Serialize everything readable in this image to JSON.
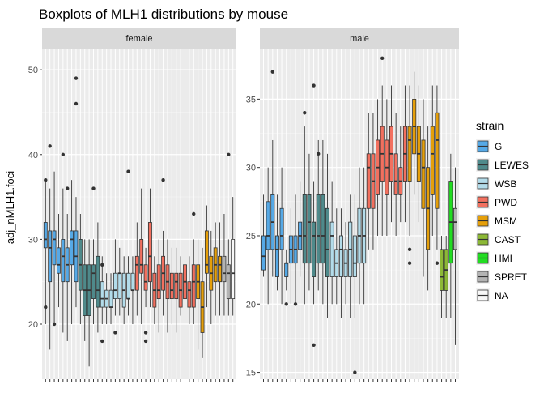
{
  "chart_data": {
    "type": "boxplot",
    "title": "Boxplots of MLH1 distributions by mouse",
    "ylabel": "adj_nMLH1.foci",
    "xlabel": "",
    "grid": true,
    "legend": {
      "title": "strain",
      "placement": "right",
      "entries": [
        {
          "name": "G",
          "color": "#56a9e6"
        },
        {
          "name": "LEWES",
          "color": "#4f8a8b"
        },
        {
          "name": "WSB",
          "color": "#b3dcea"
        },
        {
          "name": "PWD",
          "color": "#f2705f"
        },
        {
          "name": "MSM",
          "color": "#e59f0a"
        },
        {
          "name": "CAST",
          "color": "#8cb836"
        },
        {
          "name": "HMI",
          "color": "#22dd22"
        },
        {
          "name": "SPRET",
          "color": "#b3b3b3"
        },
        {
          "name": "NA",
          "color": "#f8f8f8"
        }
      ]
    },
    "facets": [
      {
        "label": "female",
        "ylim": [
          13.5,
          52.5
        ],
        "yticks": [
          20,
          30,
          40,
          50
        ],
        "boxes": [
          {
            "strain": "G",
            "min": 20,
            "q1": 29,
            "median": 30,
            "q3": 32,
            "max": 37,
            "outliers": [
              22,
              37
            ]
          },
          {
            "strain": "G",
            "min": 17,
            "q1": 25,
            "median": 29,
            "q3": 31,
            "max": 36,
            "outliers": [
              41
            ]
          },
          {
            "strain": "G",
            "min": 20,
            "q1": 27,
            "median": 30,
            "q3": 31,
            "max": 38,
            "outliers": [
              20
            ]
          },
          {
            "strain": "G",
            "min": 22,
            "q1": 26,
            "median": 27,
            "q3": 29,
            "max": 33,
            "outliers": []
          },
          {
            "strain": "G",
            "min": 19,
            "q1": 25,
            "median": 28,
            "q3": 30,
            "max": 36,
            "outliers": [
              40
            ]
          },
          {
            "strain": "G",
            "min": 18,
            "q1": 25,
            "median": 27,
            "q3": 29,
            "max": 33,
            "outliers": [
              36
            ]
          },
          {
            "strain": "G",
            "min": 20,
            "q1": 27,
            "median": 30,
            "q3": 31,
            "max": 37,
            "outliers": []
          },
          {
            "strain": "G",
            "min": 22,
            "q1": 25,
            "median": 28,
            "q3": 31,
            "max": 35,
            "outliers": [
              49,
              46
            ]
          },
          {
            "strain": "LEWES",
            "min": 20,
            "q1": 24,
            "median": 27,
            "q3": 30,
            "max": 33,
            "outliers": []
          },
          {
            "strain": "LEWES",
            "min": 18,
            "q1": 21,
            "median": 24,
            "q3": 27,
            "max": 30,
            "outliers": []
          },
          {
            "strain": "LEWES",
            "min": 15,
            "q1": 21,
            "median": 24,
            "q3": 27,
            "max": 30,
            "outliers": []
          },
          {
            "strain": "LEWES",
            "min": 20,
            "q1": 23,
            "median": 26,
            "q3": 27,
            "max": 30,
            "outliers": [
              36
            ]
          },
          {
            "strain": "LEWES",
            "min": 19,
            "q1": 22,
            "median": 24,
            "q3": 28,
            "max": 32,
            "outliers": []
          },
          {
            "strain": "WSB",
            "min": 20,
            "q1": 22,
            "median": 23,
            "q3": 25,
            "max": 28,
            "outliers": [
              18,
              27
            ]
          },
          {
            "strain": "WSB",
            "min": 20,
            "q1": 22,
            "median": 23,
            "q3": 24,
            "max": 26,
            "outliers": []
          },
          {
            "strain": "WSB",
            "min": 20,
            "q1": 22,
            "median": 22,
            "q3": 24,
            "max": 26,
            "outliers": []
          },
          {
            "strain": "WSB",
            "min": 21,
            "q1": 23,
            "median": 24,
            "q3": 26,
            "max": 30,
            "outliers": [
              19
            ]
          },
          {
            "strain": "WSB",
            "min": 21,
            "q1": 23,
            "median": 26,
            "q3": 26,
            "max": 29,
            "outliers": []
          },
          {
            "strain": "WSB",
            "min": 20,
            "q1": 22,
            "median": 24,
            "q3": 26,
            "max": 28,
            "outliers": []
          },
          {
            "strain": "WSB",
            "min": 21,
            "q1": 23,
            "median": 23,
            "q3": 26,
            "max": 28,
            "outliers": [
              38
            ]
          },
          {
            "strain": "WSB",
            "min": 20,
            "q1": 24,
            "median": 24,
            "q3": 26,
            "max": 28,
            "outliers": []
          },
          {
            "strain": "PWD",
            "min": 21,
            "q1": 24,
            "median": 27,
            "q3": 28,
            "max": 32,
            "outliers": []
          },
          {
            "strain": "PWD",
            "min": 20,
            "q1": 26,
            "median": 27,
            "q3": 30,
            "max": 36,
            "outliers": []
          },
          {
            "strain": "PWD",
            "min": 22,
            "q1": 24,
            "median": 25,
            "q3": 27,
            "max": 29,
            "outliers": [
              18,
              19
            ]
          },
          {
            "strain": "PWD",
            "min": 22,
            "q1": 25,
            "median": 28,
            "q3": 32,
            "max": 36,
            "outliers": []
          },
          {
            "strain": "PWD",
            "min": 20,
            "q1": 22,
            "median": 24,
            "q3": 26,
            "max": 28,
            "outliers": []
          },
          {
            "strain": "PWD",
            "min": 19,
            "q1": 23,
            "median": 24,
            "q3": 27,
            "max": 30,
            "outliers": []
          },
          {
            "strain": "PWD",
            "min": 21,
            "q1": 24,
            "median": 26,
            "q3": 28,
            "max": 31,
            "outliers": [
              37
            ]
          },
          {
            "strain": "PWD",
            "min": 19,
            "q1": 23,
            "median": 25,
            "q3": 27,
            "max": 30,
            "outliers": []
          },
          {
            "strain": "PWD",
            "min": 20,
            "q1": 23,
            "median": 24,
            "q3": 26,
            "max": 29,
            "outliers": []
          },
          {
            "strain": "PWD",
            "min": 19,
            "q1": 23,
            "median": 25,
            "q3": 26,
            "max": 29,
            "outliers": []
          },
          {
            "strain": "PWD",
            "min": 21,
            "q1": 22,
            "median": 24,
            "q3": 26,
            "max": 28,
            "outliers": []
          },
          {
            "strain": "PWD",
            "min": 20,
            "q1": 23,
            "median": 25,
            "q3": 27,
            "max": 30,
            "outliers": []
          },
          {
            "strain": "PWD",
            "min": 20,
            "q1": 22,
            "median": 24,
            "q3": 25,
            "max": 28,
            "outliers": []
          },
          {
            "strain": "PWD",
            "min": 20,
            "q1": 22,
            "median": 25,
            "q3": 27,
            "max": 30,
            "outliers": [
              33
            ]
          },
          {
            "strain": "MSM",
            "min": 17,
            "q1": 23,
            "median": 25,
            "q3": 27,
            "max": 30,
            "outliers": []
          },
          {
            "strain": "MSM",
            "min": 16,
            "q1": 19,
            "median": 22,
            "q3": 25,
            "max": 29,
            "outliers": []
          },
          {
            "strain": "MSM",
            "min": 22,
            "q1": 26,
            "median": 27,
            "q3": 31,
            "max": 34,
            "outliers": []
          },
          {
            "strain": "MSM",
            "min": 20,
            "q1": 24,
            "median": 26,
            "q3": 28,
            "max": 31,
            "outliers": []
          },
          {
            "strain": "MSM",
            "min": 21,
            "q1": 25,
            "median": 27,
            "q3": 29,
            "max": 32,
            "outliers": []
          },
          {
            "strain": "MSM",
            "min": 21,
            "q1": 25,
            "median": 27,
            "q3": 28,
            "max": 32,
            "outliers": []
          },
          {
            "strain": "SPRET",
            "min": 21,
            "q1": 25,
            "median": 26,
            "q3": 28,
            "max": 33,
            "outliers": []
          },
          {
            "strain": "SPRET",
            "min": 21,
            "q1": 23,
            "median": 26,
            "q3": 27,
            "max": 30,
            "outliers": [
              40
            ]
          },
          {
            "strain": "NA",
            "min": 21,
            "q1": 23,
            "median": 26,
            "q3": 30,
            "max": 35,
            "outliers": []
          }
        ]
      },
      {
        "label": "male",
        "ylim": [
          14.5,
          38.7
        ],
        "yticks": [
          15,
          20,
          25,
          30,
          35
        ],
        "boxes": [
          {
            "strain": "G",
            "min": 22,
            "q1": 22.5,
            "median": 23.5,
            "q3": 25,
            "max": 28,
            "outliers": []
          },
          {
            "strain": "G",
            "min": 20,
            "q1": 24,
            "median": 25,
            "q3": 27.5,
            "max": 30,
            "outliers": []
          },
          {
            "strain": "G",
            "min": 22,
            "q1": 24,
            "median": 26,
            "q3": 28,
            "max": 32,
            "outliers": [
              37
            ]
          },
          {
            "strain": "G",
            "min": 21,
            "q1": 22,
            "median": 24,
            "q3": 25,
            "max": 28,
            "outliers": []
          },
          {
            "strain": "G",
            "min": 20,
            "q1": 24,
            "median": 25,
            "q3": 27,
            "max": 30,
            "outliers": []
          },
          {
            "strain": "G",
            "min": 21,
            "q1": 22,
            "median": 23,
            "q3": 23,
            "max": 24,
            "outliers": [
              20
            ]
          },
          {
            "strain": "G",
            "min": 20,
            "q1": 23,
            "median": 24,
            "q3": 25,
            "max": 27,
            "outliers": []
          },
          {
            "strain": "G",
            "min": 20,
            "q1": 23,
            "median": 24,
            "q3": 25,
            "max": 28,
            "outliers": [
              20
            ]
          },
          {
            "strain": "G",
            "min": 22,
            "q1": 24,
            "median": 25,
            "q3": 26,
            "max": 29,
            "outliers": []
          },
          {
            "strain": "LEWES",
            "min": 20,
            "q1": 23,
            "median": 25,
            "q3": 28,
            "max": 33,
            "outliers": [
              34
            ]
          },
          {
            "strain": "LEWES",
            "min": 21,
            "q1": 23,
            "median": 26,
            "q3": 28,
            "max": 31,
            "outliers": []
          },
          {
            "strain": "LEWES",
            "min": 20,
            "q1": 22,
            "median": 25,
            "q3": 26,
            "max": 29,
            "outliers": [
              17,
              36
            ]
          },
          {
            "strain": "LEWES",
            "min": 21,
            "q1": 23,
            "median": 25,
            "q3": 28,
            "max": 32,
            "outliers": [
              31
            ]
          },
          {
            "strain": "LEWES",
            "min": 20,
            "q1": 23,
            "median": 25,
            "q3": 28,
            "max": 32,
            "outliers": []
          },
          {
            "strain": "LEWES",
            "min": 19,
            "q1": 22,
            "median": 24,
            "q3": 27,
            "max": 31,
            "outliers": []
          },
          {
            "strain": "WSB",
            "min": 20,
            "q1": 22,
            "median": 25,
            "q3": 26,
            "max": 29,
            "outliers": []
          },
          {
            "strain": "WSB",
            "min": 20,
            "q1": 22,
            "median": 23,
            "q3": 24,
            "max": 27,
            "outliers": []
          },
          {
            "strain": "WSB",
            "min": 19,
            "q1": 22,
            "median": 24,
            "q3": 25,
            "max": 27,
            "outliers": []
          },
          {
            "strain": "WSB",
            "min": 20,
            "q1": 22,
            "median": 23,
            "q3": 24,
            "max": 26,
            "outliers": []
          },
          {
            "strain": "WSB",
            "min": 19,
            "q1": 22,
            "median": 24,
            "q3": 26,
            "max": 28,
            "outliers": []
          },
          {
            "strain": "WSB",
            "min": 19,
            "q1": 22,
            "median": 23,
            "q3": 25,
            "max": 28,
            "outliers": [
              15
            ]
          },
          {
            "strain": "WSB",
            "min": 20,
            "q1": 23,
            "median": 25,
            "q3": 27,
            "max": 30,
            "outliers": []
          },
          {
            "strain": "WSB",
            "min": 20,
            "q1": 23,
            "median": 25,
            "q3": 27,
            "max": 30,
            "outliers": []
          },
          {
            "strain": "PWD",
            "min": 24,
            "q1": 27,
            "median": 30,
            "q3": 31,
            "max": 34,
            "outliers": []
          },
          {
            "strain": "PWD",
            "min": 24,
            "q1": 27,
            "median": 29,
            "q3": 31,
            "max": 34,
            "outliers": []
          },
          {
            "strain": "PWD",
            "min": 25,
            "q1": 28,
            "median": 30,
            "q3": 32,
            "max": 35,
            "outliers": []
          },
          {
            "strain": "PWD",
            "min": 25,
            "q1": 29,
            "median": 31,
            "q3": 33,
            "max": 36,
            "outliers": [
              38
            ]
          },
          {
            "strain": "PWD",
            "min": 25,
            "q1": 28,
            "median": 30,
            "q3": 32,
            "max": 35,
            "outliers": []
          },
          {
            "strain": "PWD",
            "min": 26,
            "q1": 29,
            "median": 31,
            "q3": 33,
            "max": 36,
            "outliers": []
          },
          {
            "strain": "PWD",
            "min": 25,
            "q1": 28,
            "median": 29,
            "q3": 31,
            "max": 34,
            "outliers": []
          },
          {
            "strain": "PWD",
            "min": 26,
            "q1": 28,
            "median": 29,
            "q3": 30,
            "max": 33,
            "outliers": []
          },
          {
            "strain": "PWD",
            "min": 26,
            "q1": 29,
            "median": 31,
            "q3": 33,
            "max": 36,
            "outliers": []
          },
          {
            "strain": "MSM",
            "min": 25,
            "q1": 29,
            "median": 32,
            "q3": 33,
            "max": 36,
            "outliers": [
              24,
              23
            ]
          },
          {
            "strain": "MSM",
            "min": 28,
            "q1": 31,
            "median": 33,
            "q3": 35,
            "max": 37,
            "outliers": []
          },
          {
            "strain": "MSM",
            "min": 26,
            "q1": 29,
            "median": 31,
            "q3": 33,
            "max": 36,
            "outliers": []
          },
          {
            "strain": "MSM",
            "min": 22,
            "q1": 27,
            "median": 30,
            "q3": 32,
            "max": 35,
            "outliers": []
          },
          {
            "strain": "MSM",
            "min": 21,
            "q1": 24,
            "median": 27,
            "q3": 30,
            "max": 33,
            "outliers": []
          },
          {
            "strain": "MSM",
            "min": 25,
            "q1": 28,
            "median": 31,
            "q3": 33,
            "max": 36,
            "outliers": []
          },
          {
            "strain": "MSM",
            "min": 24,
            "q1": 27,
            "median": 32,
            "q3": 34,
            "max": 36,
            "outliers": [
              23
            ]
          },
          {
            "strain": "CAST",
            "min": 19,
            "q1": 21,
            "median": 22,
            "q3": 24,
            "max": 25,
            "outliers": []
          },
          {
            "strain": "CAST",
            "min": 19,
            "q1": 21,
            "median": 22.5,
            "q3": 24,
            "max": 25,
            "outliers": []
          },
          {
            "strain": "HMI",
            "min": 19,
            "q1": 23,
            "median": 26,
            "q3": 29,
            "max": 31,
            "outliers": []
          },
          {
            "strain": "SPRET",
            "min": 17,
            "q1": 24,
            "median": 26,
            "q3": 27,
            "max": 30,
            "outliers": []
          }
        ]
      }
    ]
  }
}
